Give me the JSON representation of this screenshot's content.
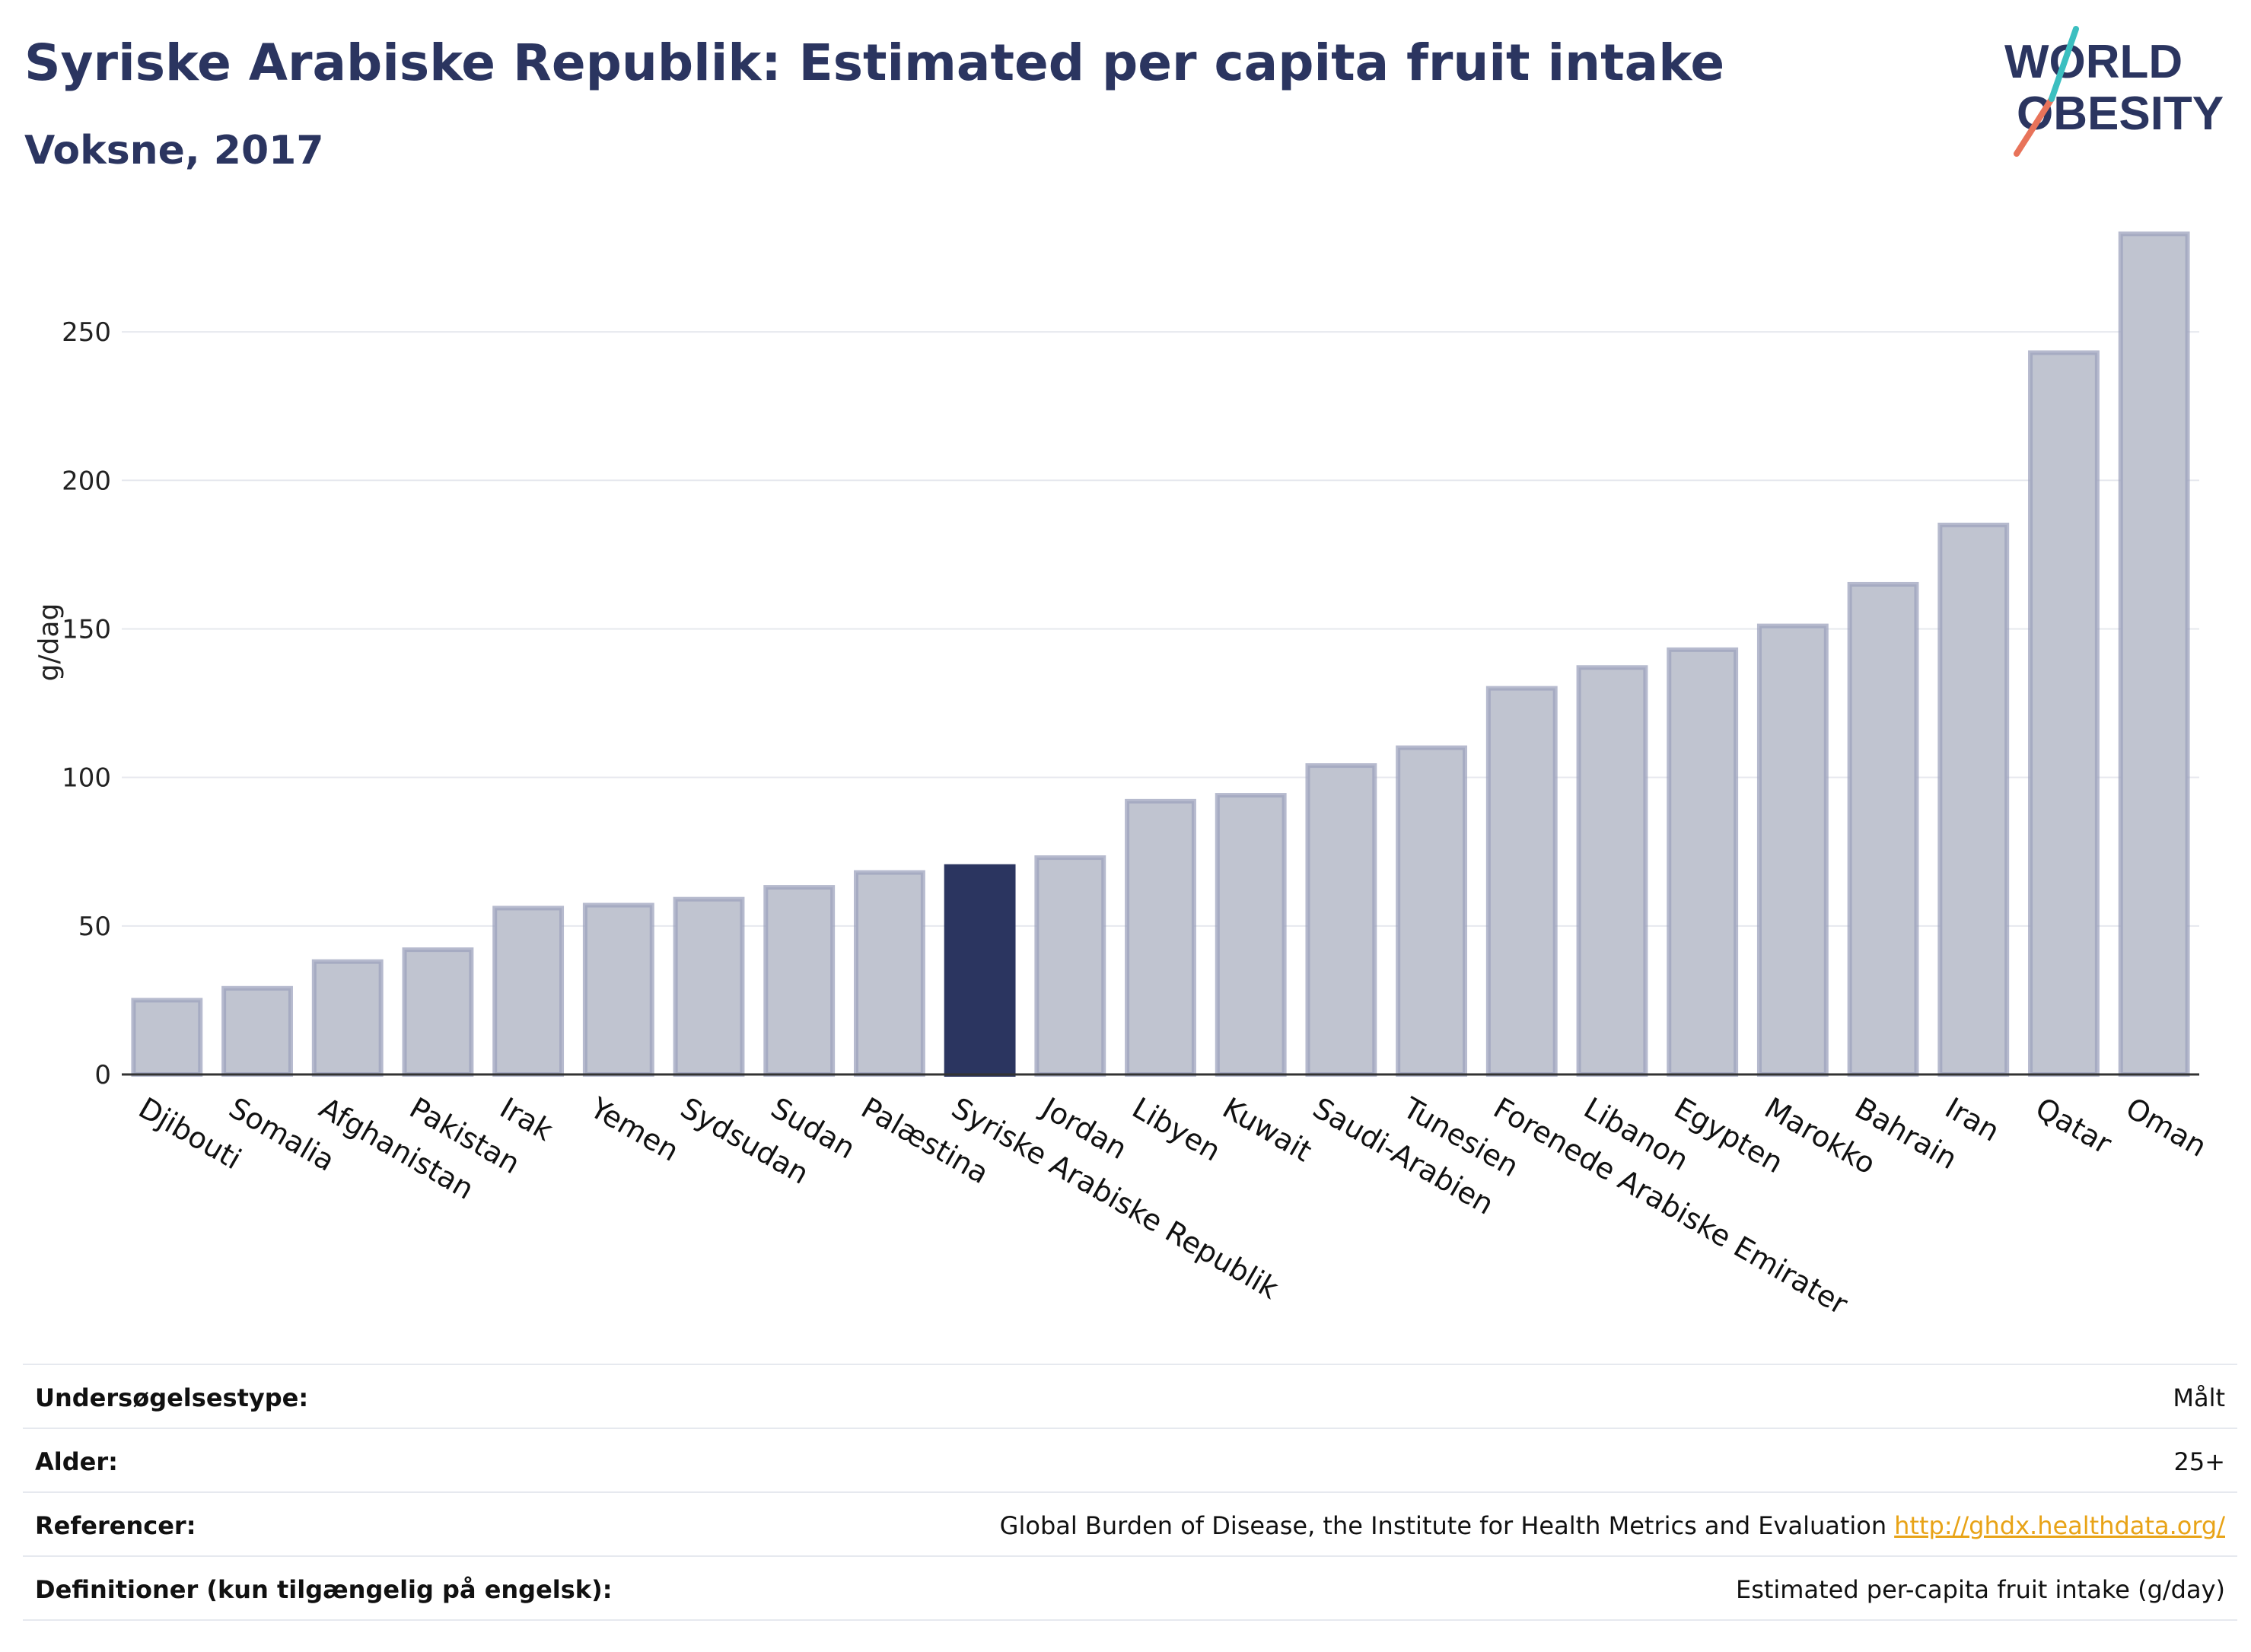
{
  "header": {
    "title": "Syriske Arabiske Republik: Estimated per capita fruit intake",
    "subtitle": "Voksne, 2017"
  },
  "logo": {
    "line1": "WORLD",
    "line2": "OBESITY"
  },
  "colors": {
    "bar": "#c0c4d0",
    "bar_border": "#9da3bd",
    "highlight": "#2b3560",
    "text": "#2b3560"
  },
  "chart_data": {
    "type": "bar",
    "ylabel": "g/dag",
    "ylim": [
      0,
      290
    ],
    "yticks": [
      0,
      50,
      100,
      150,
      200,
      250
    ],
    "grid": true,
    "highlight": "Syriske Arabiske Republik",
    "categories": [
      "Djibouti",
      "Somalia",
      "Afghanistan",
      "Pakistan",
      "Irak",
      "Yemen",
      "Sydsudan",
      "Sudan",
      "Palæstina",
      "Syriske Arabiske Republik",
      "Jordan",
      "Libyen",
      "Kuwait",
      "Saudi-Arabien",
      "Tunesien",
      "Forenede Arabiske Emirater",
      "Libanon",
      "Egypten",
      "Marokko",
      "Bahrain",
      "Iran",
      "Qatar",
      "Oman"
    ],
    "values": [
      25,
      29,
      38,
      42,
      56,
      57,
      59,
      63,
      68,
      70,
      73,
      92,
      94,
      104,
      110,
      130,
      137,
      143,
      151,
      165,
      185,
      243,
      283
    ]
  },
  "info": {
    "rows": [
      {
        "label": "Undersøgelsestype:",
        "value": "Målt"
      },
      {
        "label": "Alder:",
        "value": "25+"
      },
      {
        "label": "Referencer:",
        "value": "Global Burden of Disease, the Institute for Health Metrics and Evaluation",
        "link": "http://ghdx.healthdata.org/"
      },
      {
        "label": "Definitioner (kun tilgængelig på engelsk):",
        "value": "Estimated per-capita fruit intake (g/day)"
      }
    ]
  }
}
